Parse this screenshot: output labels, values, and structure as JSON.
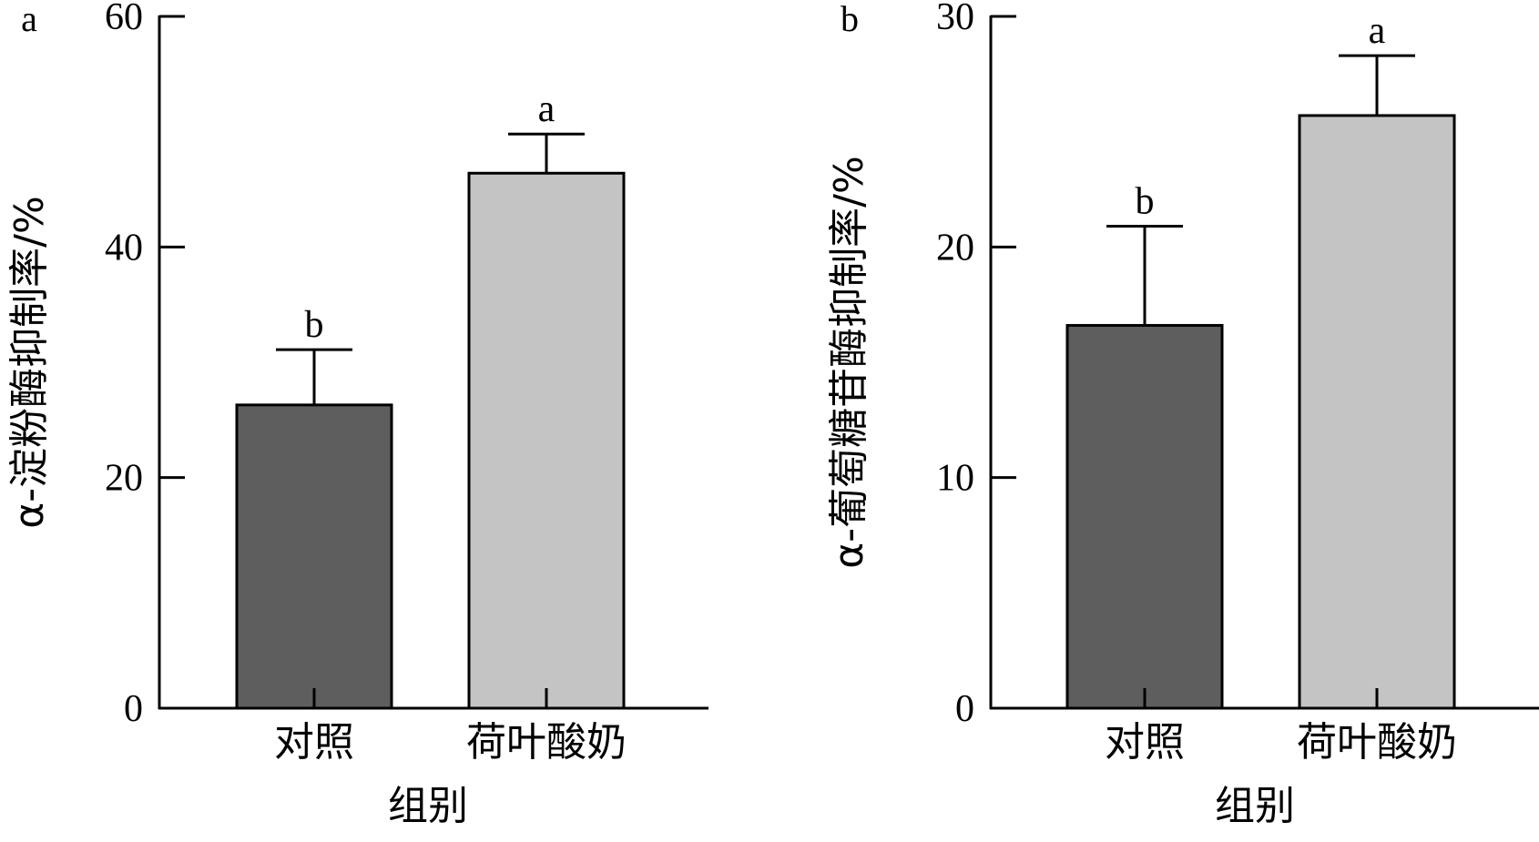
{
  "chart_data": [
    {
      "type": "bar",
      "panel_label": "a",
      "ylabel": "α-淀粉酶抑制率/%",
      "xlabel": "组别",
      "categories": [
        "对照",
        "荷叶酸奶"
      ],
      "values": [
        26.3,
        46.4
      ],
      "errors": [
        4.8,
        3.4
      ],
      "significance": [
        "b",
        "a"
      ],
      "bar_colors": [
        "#5e5e5e",
        "#c4c4c4"
      ],
      "ylim": [
        0,
        60
      ],
      "yticks": [
        0,
        20,
        40,
        60
      ],
      "ytick_labels": [
        "0",
        "20",
        "40",
        "60"
      ],
      "grid": false
    },
    {
      "type": "bar",
      "panel_label": "b",
      "ylabel": "α-葡萄糖苷酶抑制率/%",
      "xlabel": "组别",
      "categories": [
        "对照",
        "荷叶酸奶"
      ],
      "values": [
        16.6,
        25.7
      ],
      "errors": [
        4.3,
        2.6
      ],
      "significance": [
        "b",
        "a"
      ],
      "bar_colors": [
        "#5e5e5e",
        "#c4c4c4"
      ],
      "ylim": [
        0,
        30
      ],
      "yticks": [
        0,
        10,
        20,
        30
      ],
      "ytick_labels": [
        "0",
        "10",
        "20",
        "30"
      ],
      "grid": false
    }
  ]
}
